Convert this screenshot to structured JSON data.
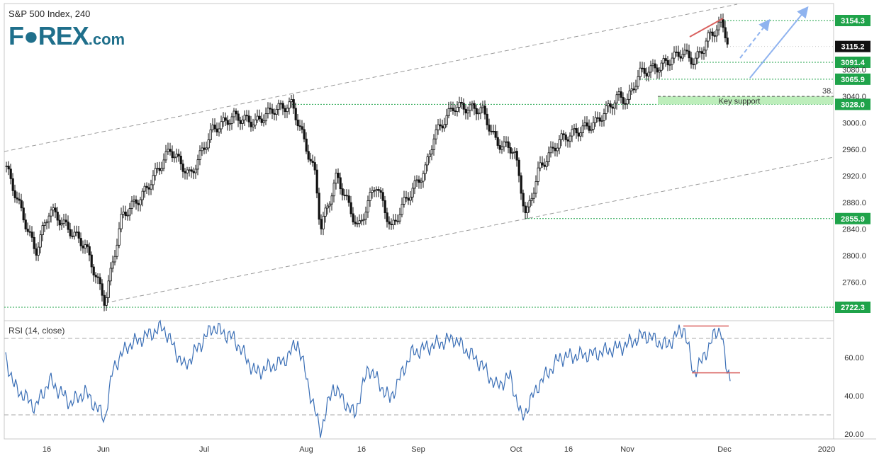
{
  "header": {
    "title": "S&P 500 Index, 240",
    "brand": "F●REX",
    "brand_suffix": ".com"
  },
  "rsi_label": "RSI (14, close)",
  "annotations": {
    "key_support": "Key support",
    "fib_label": "38."
  },
  "colors": {
    "grid_line": "#1fa34a",
    "price_tag_bg": "#1fa34a",
    "current_tag_bg": "#111111",
    "rsi_line": "#3b6fb6",
    "trend_red": "#d9605e",
    "arrow_blue": "#8fb3ef",
    "support_fill": "#bdeebb",
    "candle": "#111111"
  },
  "chart_data": {
    "type": "candlestick",
    "price_axis_ticks": [
      "3040.0",
      "3000.0",
      "2960.0",
      "2920.0",
      "2880.0",
      "2840.0",
      "2800.0",
      "2760.0"
    ],
    "x_axis_ticks": [
      "16",
      "Jun",
      "Jul",
      "Aug",
      "16",
      "Sep",
      "Oct",
      "16",
      "Nov",
      "Dec",
      "2020"
    ],
    "rsi_axis_ticks": [
      "60.00",
      "40.00",
      "20.00"
    ],
    "price_levels": [
      {
        "label": "3154.3",
        "value": 3154.3
      },
      {
        "label": "3091.4",
        "value": 3091.4
      },
      {
        "label": "3065.9",
        "value": 3065.9
      },
      {
        "label": "3028.0",
        "value": 3028.0
      },
      {
        "label": "2855.9",
        "value": 2855.9
      },
      {
        "label": "2722.3",
        "value": 2722.3
      }
    ],
    "current_price": {
      "label": "3115.2",
      "value": 3115.2
    },
    "hidden_tick": "3080.0",
    "ylim": [
      2710,
      3170
    ],
    "rsi_levels": [
      70,
      30
    ],
    "rsi_ylim": [
      15,
      82
    ]
  }
}
